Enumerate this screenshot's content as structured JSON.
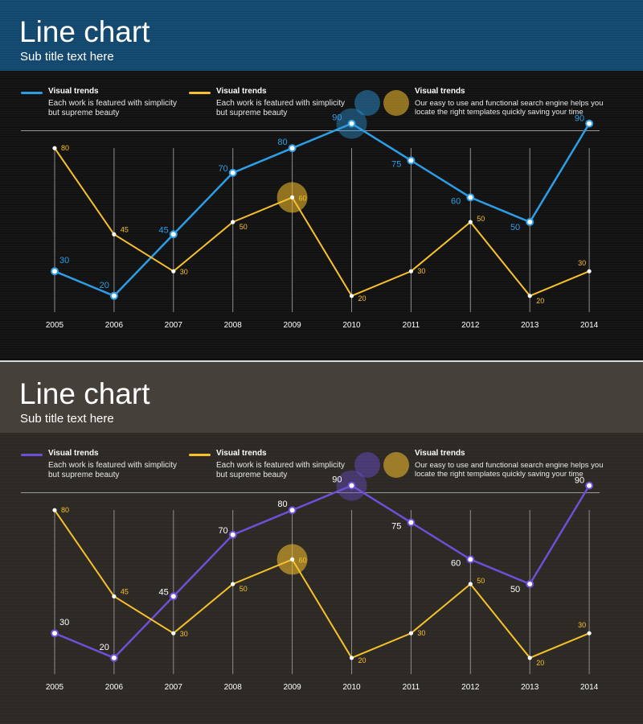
{
  "panels": [
    {
      "title": "Line chart",
      "subtitle": "Sub title text here",
      "colors": {
        "background": "#121212",
        "header": "#12476e",
        "series1": "#2d9ee6",
        "series2": "#f7c12c",
        "label1": "#2d9ee6",
        "label2": "#f7c12c"
      },
      "legend": [
        {
          "label": "Visual trends",
          "desc": "Each work is featured with simplicity but supreme beauty"
        },
        {
          "label": "Visual trends",
          "desc": "Each work is featured with simplicity but supreme beauty"
        },
        {
          "label": "Visual trends",
          "desc": "Our easy to use and functional search engine helps you locate the right templates quickly saving your time"
        }
      ]
    },
    {
      "title": "Line chart",
      "subtitle": "Sub title text here",
      "colors": {
        "background": "#2d2924",
        "header": "#46403a",
        "series1": "#6e50d8",
        "series2": "#f7c12c",
        "label1": "#ffffff",
        "label2": "#f7c12c"
      },
      "legend": [
        {
          "label": "Visual trends",
          "desc": "Each work is featured with simplicity but supreme beauty"
        },
        {
          "label": "Visual trends",
          "desc": "Each work is featured with simplicity but supreme beauty"
        },
        {
          "label": "Visual trends",
          "desc": "Our easy to use and functional search engine helps you locate the right templates quickly saving your time"
        }
      ]
    }
  ],
  "chart_data": [
    {
      "type": "line",
      "title": "Line chart",
      "subtitle": "Sub title text here",
      "categories": [
        "2005",
        "2006",
        "2007",
        "2008",
        "2009",
        "2010",
        "2011",
        "2012",
        "2013",
        "2014"
      ],
      "series": [
        {
          "name": "Visual trends",
          "values": [
            30,
            20,
            45,
            70,
            80,
            90,
            75,
            60,
            50,
            90
          ]
        },
        {
          "name": "Visual trends",
          "values": [
            80,
            45,
            30,
            50,
            60,
            20,
            30,
            50,
            20,
            30
          ]
        }
      ],
      "highlights": [
        {
          "series": 0,
          "category": "2010"
        },
        {
          "series": 1,
          "category": "2009"
        }
      ],
      "ylim": [
        0,
        100
      ],
      "grid": "vertical"
    },
    {
      "type": "line",
      "title": "Line chart",
      "subtitle": "Sub title text here",
      "categories": [
        "2005",
        "2006",
        "2007",
        "2008",
        "2009",
        "2010",
        "2011",
        "2012",
        "2013",
        "2014"
      ],
      "series": [
        {
          "name": "Visual trends",
          "values": [
            30,
            20,
            45,
            70,
            80,
            90,
            75,
            60,
            50,
            90
          ]
        },
        {
          "name": "Visual trends",
          "values": [
            80,
            45,
            30,
            50,
            60,
            20,
            30,
            50,
            20,
            30
          ]
        }
      ],
      "highlights": [
        {
          "series": 0,
          "category": "2010"
        },
        {
          "series": 1,
          "category": "2009"
        }
      ],
      "ylim": [
        0,
        100
      ],
      "grid": "vertical"
    }
  ]
}
